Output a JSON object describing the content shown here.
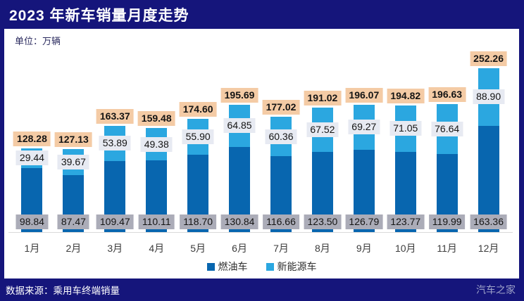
{
  "header": {
    "title": "2023 年新车销量月度走势"
  },
  "unit_label": "单位：万辆",
  "chart_data": {
    "type": "bar",
    "stacked": true,
    "title": "2023 年新车销量月度走势",
    "unit": "万辆",
    "categories": [
      "1月",
      "2月",
      "3月",
      "4月",
      "5月",
      "6月",
      "7月",
      "8月",
      "9月",
      "10月",
      "11月",
      "12月"
    ],
    "series": [
      {
        "name": "燃油车",
        "color": "#0866AF",
        "values": [
          98.84,
          87.47,
          109.47,
          110.11,
          118.7,
          130.84,
          116.66,
          123.5,
          126.79,
          123.77,
          119.99,
          163.36
        ]
      },
      {
        "name": "新能源车",
        "color": "#2BA7E0",
        "values": [
          29.44,
          39.67,
          53.89,
          49.38,
          55.9,
          64.85,
          60.36,
          67.52,
          69.27,
          71.05,
          76.64,
          88.9
        ]
      }
    ],
    "totals": [
      128.28,
      127.13,
      163.37,
      159.48,
      174.6,
      195.69,
      177.02,
      191.02,
      196.07,
      194.82,
      196.63,
      252.26
    ],
    "legend_position": "bottom",
    "grid": false,
    "value_labels": true
  },
  "footer": {
    "source": "数据来源：乘用车终端销量",
    "watermark": "汽车之家"
  },
  "colors": {
    "navy": "#15157B",
    "fuel_blue": "#0866AF",
    "nev_blue": "#2BA7E0",
    "total_label_bg": "#F4CBA5",
    "nev_label_bg": "#E7EAF2",
    "fuel_label_bg": "#ABACB8",
    "axis_line": "#D9D9D9"
  }
}
